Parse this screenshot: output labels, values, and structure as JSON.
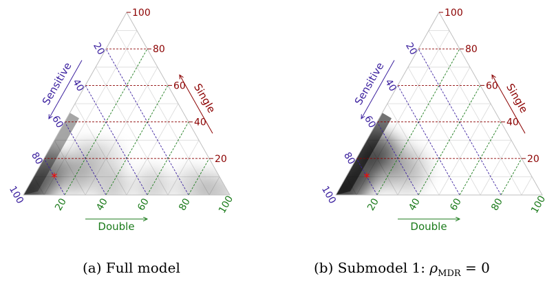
{
  "colors": {
    "sensitive_axis": "#3a1f9e",
    "single_axis": "#8b0000",
    "double_axis": "#1a7a1a",
    "grid_minor": "#d9d9d9",
    "density": "#000000",
    "marker": "#ff0000"
  },
  "chart_data": [
    {
      "type": "ternary",
      "panel": "a",
      "caption": "(a) Full model",
      "axes": {
        "sensitive": {
          "label": "Sensitive",
          "ticks": [
            "20",
            "40",
            "60",
            "80",
            "100"
          ]
        },
        "single": {
          "label": "Single",
          "ticks": [
            "20",
            "40",
            "60",
            "80",
            "100"
          ]
        },
        "double": {
          "label": "Double",
          "ticks": [
            "20",
            "40",
            "60",
            "80",
            "100"
          ]
        }
      },
      "grid": true,
      "marker": {
        "symbol": "*",
        "sensitive": 80,
        "double": 10,
        "single": 10
      },
      "density_regions": [
        {
          "sensitive": 100,
          "double": 0,
          "single": 0,
          "weight": 1.0
        },
        {
          "sensitive": 90,
          "double": 5,
          "single": 5,
          "weight": 0.85
        },
        {
          "sensitive": 80,
          "double": 5,
          "single": 15,
          "weight": 0.75
        },
        {
          "sensitive": 70,
          "double": 20,
          "single": 10,
          "weight": 0.45
        },
        {
          "sensitive": 55,
          "double": 40,
          "single": 5,
          "weight": 0.35
        },
        {
          "sensitive": 35,
          "double": 60,
          "single": 5,
          "weight": 0.3
        },
        {
          "sensitive": 15,
          "double": 80,
          "single": 5,
          "weight": 0.3
        },
        {
          "sensitive": 5,
          "double": 93,
          "single": 2,
          "weight": 0.35
        },
        {
          "sensitive": 60,
          "double": 20,
          "single": 20,
          "weight": 0.3
        },
        {
          "sensitive": 50,
          "double": 30,
          "single": 20,
          "weight": 0.2
        }
      ]
    },
    {
      "type": "ternary",
      "panel": "b",
      "caption": "(b) Submodel 1: ",
      "caption_rho": "ρ",
      "caption_sub": "MDR",
      "caption_tail": " = 0",
      "axes": {
        "sensitive": {
          "label": "Sensitive",
          "ticks": [
            "20",
            "40",
            "60",
            "80",
            "100"
          ]
        },
        "single": {
          "label": "Single",
          "ticks": [
            "20",
            "40",
            "60",
            "80",
            "100"
          ]
        },
        "double": {
          "label": "Double",
          "ticks": [
            "20",
            "40",
            "60",
            "80",
            "100"
          ]
        }
      },
      "grid": true,
      "marker": {
        "symbol": "*",
        "sensitive": 80,
        "double": 10,
        "single": 10
      },
      "density_regions": [
        {
          "sensitive": 100,
          "double": 0,
          "single": 0,
          "weight": 1.0
        },
        {
          "sensitive": 90,
          "double": 5,
          "single": 5,
          "weight": 1.0
        },
        {
          "sensitive": 80,
          "double": 5,
          "single": 15,
          "weight": 0.9
        },
        {
          "sensitive": 70,
          "double": 5,
          "single": 25,
          "weight": 0.8
        },
        {
          "sensitive": 65,
          "double": 10,
          "single": 25,
          "weight": 0.55
        },
        {
          "sensitive": 72,
          "double": 15,
          "single": 13,
          "weight": 0.45
        },
        {
          "sensitive": 60,
          "double": 20,
          "single": 20,
          "weight": 0.3
        },
        {
          "sensitive": 55,
          "double": 30,
          "single": 15,
          "weight": 0.25
        },
        {
          "sensitive": 62,
          "double": 30,
          "single": 8,
          "weight": 0.2
        }
      ]
    }
  ]
}
